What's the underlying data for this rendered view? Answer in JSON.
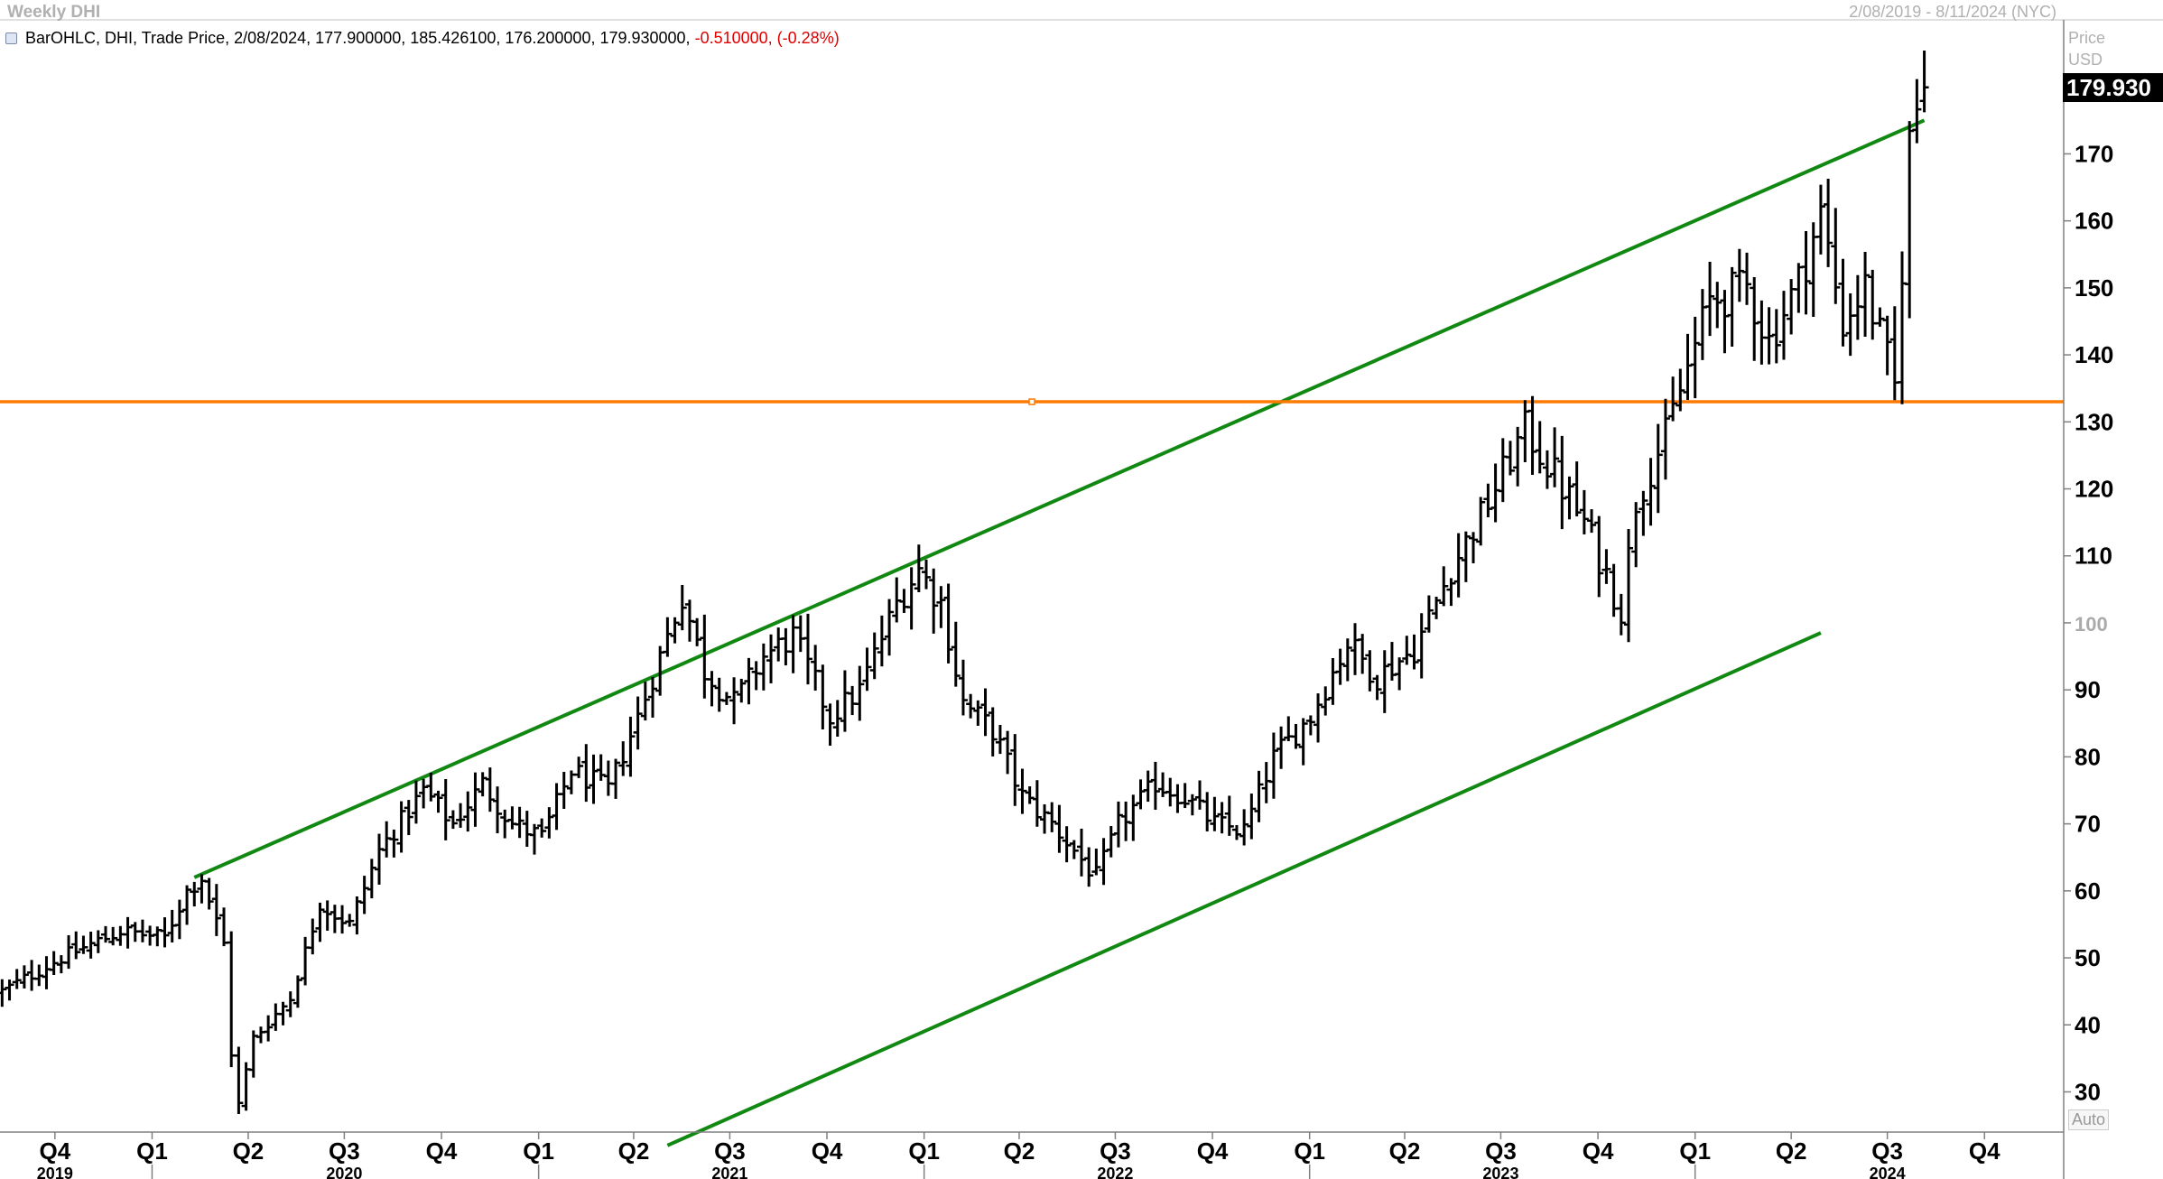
{
  "window": {
    "title": "Weekly DHI",
    "date_range": "2/08/2019 - 8/11/2024 (NYC)"
  },
  "legend": {
    "series_label": "BarOHLC, DHI, Trade Price, 2/08/2024, 177.900000, 185.426100, 176.200000, 179.930000,",
    "change": "-0.510000,",
    "change_pct": "(-0.28%)"
  },
  "price_axis": {
    "header": "Price",
    "currency": "USD",
    "last_price_label": "179.930",
    "auto_label": "Auto"
  },
  "colors": {
    "bars": "#000000",
    "trendlines": "#118811",
    "horizontal_level": "#ff7a00",
    "last_tag_bg": "#000000",
    "negative_change": "#e00000",
    "grid": "#c8c8c8"
  },
  "chart_data": {
    "type": "bar",
    "subtype": "ohlc",
    "grid": true,
    "ylim": [
      24,
      190
    ],
    "yticks": [
      30,
      40,
      50,
      60,
      70,
      80,
      90,
      100,
      110,
      120,
      130,
      140,
      150,
      160,
      170
    ],
    "x_range": [
      "2019-08-10",
      "2024-12-15"
    ],
    "quarter_ticks": [
      {
        "label": "Q4",
        "date": "2019-10-01"
      },
      {
        "label": "Q1",
        "date": "2020-01-01"
      },
      {
        "label": "Q2",
        "date": "2020-04-01"
      },
      {
        "label": "Q3",
        "date": "2020-07-01"
      },
      {
        "label": "Q4",
        "date": "2020-10-01"
      },
      {
        "label": "Q1",
        "date": "2021-01-01"
      },
      {
        "label": "Q2",
        "date": "2021-04-01"
      },
      {
        "label": "Q3",
        "date": "2021-07-01"
      },
      {
        "label": "Q4",
        "date": "2021-10-01"
      },
      {
        "label": "Q1",
        "date": "2022-01-01"
      },
      {
        "label": "Q2",
        "date": "2022-04-01"
      },
      {
        "label": "Q3",
        "date": "2022-07-01"
      },
      {
        "label": "Q4",
        "date": "2022-10-01"
      },
      {
        "label": "Q1",
        "date": "2023-01-01"
      },
      {
        "label": "Q2",
        "date": "2023-04-01"
      },
      {
        "label": "Q3",
        "date": "2023-07-01"
      },
      {
        "label": "Q4",
        "date": "2023-10-01"
      },
      {
        "label": "Q1",
        "date": "2024-01-01"
      },
      {
        "label": "Q2",
        "date": "2024-04-01"
      },
      {
        "label": "Q3",
        "date": "2024-07-01"
      },
      {
        "label": "Q4",
        "date": "2024-10-01"
      }
    ],
    "year_ticks": [
      {
        "label": "2019",
        "date": "2019-10-01"
      },
      {
        "label": "2020",
        "date": "2020-07-01"
      },
      {
        "label": "2021",
        "date": "2021-07-01"
      },
      {
        "label": "2022",
        "date": "2022-07-01"
      },
      {
        "label": "2023",
        "date": "2023-07-01"
      },
      {
        "label": "2024",
        "date": "2024-07-01"
      }
    ],
    "anchors": [
      [
        "2019-08-12",
        45
      ],
      [
        "2019-10-07",
        50
      ],
      [
        "2019-12-02",
        54
      ],
      [
        "2020-01-13",
        53
      ],
      [
        "2020-02-03",
        60
      ],
      [
        "2020-02-17",
        62
      ],
      [
        "2020-03-09",
        52
      ],
      [
        "2020-03-16",
        36
      ],
      [
        "2020-03-23",
        28
      ],
      [
        "2020-04-06",
        38
      ],
      [
        "2020-05-11",
        44
      ],
      [
        "2020-06-08",
        58
      ],
      [
        "2020-07-06",
        55
      ],
      [
        "2020-08-03",
        66
      ],
      [
        "2020-09-14",
        75
      ],
      [
        "2020-10-12",
        70
      ],
      [
        "2020-11-09",
        76
      ],
      [
        "2020-12-07",
        70
      ],
      [
        "2021-01-04",
        68
      ],
      [
        "2021-02-01",
        78
      ],
      [
        "2021-03-08",
        75
      ],
      [
        "2021-04-05",
        86
      ],
      [
        "2021-05-03",
        98
      ],
      [
        "2021-05-17",
        104
      ],
      [
        "2021-06-07",
        93
      ],
      [
        "2021-07-05",
        88
      ],
      [
        "2021-08-02",
        95
      ],
      [
        "2021-08-30",
        98
      ],
      [
        "2021-10-04",
        86
      ],
      [
        "2021-11-01",
        90
      ],
      [
        "2021-12-06",
        103
      ],
      [
        "2021-12-27",
        108
      ],
      [
        "2022-01-17",
        103
      ],
      [
        "2022-02-07",
        88
      ],
      [
        "2022-03-07",
        84
      ],
      [
        "2022-04-04",
        74
      ],
      [
        "2022-05-02",
        70
      ],
      [
        "2022-06-13",
        62
      ],
      [
        "2022-07-04",
        70
      ],
      [
        "2022-08-08",
        76
      ],
      [
        "2022-09-05",
        74
      ],
      [
        "2022-10-03",
        70
      ],
      [
        "2022-10-31",
        69
      ],
      [
        "2022-11-28",
        80
      ],
      [
        "2023-01-02",
        86
      ],
      [
        "2023-02-06",
        97
      ],
      [
        "2023-03-06",
        92
      ],
      [
        "2023-04-10",
        96
      ],
      [
        "2023-05-15",
        108
      ],
      [
        "2023-06-19",
        118
      ],
      [
        "2023-07-24",
        129
      ],
      [
        "2023-08-21",
        122
      ],
      [
        "2023-09-18",
        115
      ],
      [
        "2023-10-23",
        102
      ],
      [
        "2023-11-06",
        118
      ],
      [
        "2023-12-04",
        128
      ],
      [
        "2023-12-25",
        138
      ],
      [
        "2024-01-15",
        148
      ],
      [
        "2024-02-19",
        150
      ],
      [
        "2024-03-11",
        142
      ],
      [
        "2024-04-08",
        151
      ],
      [
        "2024-04-29",
        161
      ],
      [
        "2024-05-20",
        145
      ],
      [
        "2024-06-10",
        150
      ],
      [
        "2024-07-01",
        139
      ],
      [
        "2024-07-08",
        135
      ],
      [
        "2024-07-15",
        153
      ],
      [
        "2024-07-22",
        172
      ],
      [
        "2024-07-29",
        177
      ],
      [
        "2024-08-05",
        180
      ]
    ],
    "series": [
      {
        "name": "DHI",
        "last_bar": {
          "date": "2/08/2024",
          "open": 177.9,
          "high": 185.4261,
          "low": 176.2,
          "close": 179.93
        }
      }
    ],
    "trendlines": [
      {
        "role": "upper",
        "from": [
          "2020-02-10",
          62
        ],
        "to": [
          "2024-08-05",
          175
        ]
      },
      {
        "role": "lower",
        "from": [
          "2021-05-03",
          22
        ],
        "to": [
          "2024-04-29",
          98.5
        ]
      }
    ],
    "horizontal_level": 133
  }
}
